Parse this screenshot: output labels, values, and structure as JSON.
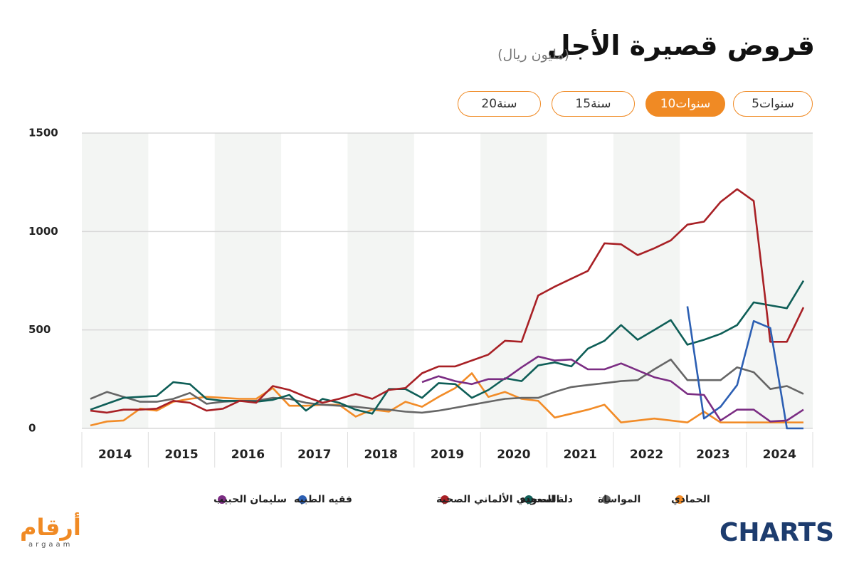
{
  "header": {
    "title": "قروض قصيرة الأجل",
    "subtitle": "(مليون ريال)"
  },
  "buttons": [
    "5سنوات",
    "10سنوات",
    "15سنة",
    "20سنة"
  ],
  "active_button": 1,
  "chart_data": {
    "type": "line",
    "categories": [
      "2014",
      null,
      null,
      null,
      "2015",
      null,
      null,
      null,
      "2016",
      null,
      null,
      null,
      "2017",
      null,
      null,
      null,
      "2018",
      null,
      null,
      null,
      "2019",
      null,
      null,
      null,
      "2020",
      null,
      null,
      null,
      "2021",
      null,
      null,
      null,
      "2022",
      null,
      null,
      null,
      "2023",
      null,
      null,
      null,
      "2024",
      null,
      null,
      null
    ],
    "ylim": [
      0,
      1500
    ],
    "yticks": [
      0,
      500,
      1000,
      1500
    ],
    "grid": true,
    "series": [
      {
        "name": "الحمادي",
        "color": "#f28c28",
        "values": [
          15,
          35,
          40,
          100,
          90,
          135,
          150,
          160,
          155,
          150,
          150,
          205,
          115,
          115,
          120,
          120,
          60,
          95,
          85,
          135,
          110,
          160,
          205,
          280,
          160,
          185,
          150,
          140,
          55,
          75,
          95,
          120,
          30,
          40,
          50,
          40,
          30,
          85,
          30,
          30,
          30,
          30,
          30,
          30
        ]
      },
      {
        "name": "المواساة",
        "color": "#666666",
        "values": [
          150,
          185,
          160,
          135,
          135,
          150,
          180,
          125,
          135,
          140,
          140,
          155,
          150,
          130,
          120,
          115,
          110,
          100,
          95,
          85,
          80,
          90,
          105,
          120,
          135,
          150,
          155,
          155,
          185,
          210,
          220,
          230,
          240,
          245,
          300,
          350,
          245,
          245,
          245,
          310,
          285,
          200,
          215,
          175
        ]
      },
      {
        "name": "دلة الصحية",
        "color": "#0e5e57",
        "values": [
          95,
          125,
          155,
          160,
          165,
          235,
          225,
          150,
          140,
          140,
          135,
          145,
          170,
          90,
          150,
          130,
          95,
          75,
          200,
          200,
          155,
          230,
          225,
          155,
          195,
          255,
          240,
          320,
          335,
          315,
          405,
          445,
          525,
          450,
          500,
          550,
          425,
          450,
          480,
          525,
          640,
          625,
          610,
          750
        ]
      },
      {
        "name": "السعودي الألماني الصحية",
        "color": "#a82025",
        "values": [
          90,
          80,
          95,
          95,
          100,
          140,
          130,
          90,
          100,
          140,
          130,
          215,
          195,
          160,
          130,
          150,
          175,
          150,
          195,
          205,
          280,
          315,
          315,
          345,
          375,
          445,
          440,
          675,
          720,
          760,
          800,
          940,
          935,
          880,
          915,
          955,
          1035,
          1050,
          1150,
          1215,
          1155,
          440,
          440,
          615
        ]
      },
      {
        "name": "فقيه الطبيه",
        "color": "#2c5fb3",
        "values": [
          null,
          null,
          null,
          null,
          null,
          null,
          null,
          null,
          null,
          null,
          null,
          null,
          null,
          null,
          null,
          null,
          null,
          null,
          null,
          null,
          null,
          null,
          null,
          null,
          null,
          null,
          null,
          null,
          null,
          null,
          null,
          null,
          null,
          null,
          null,
          null,
          620,
          50,
          110,
          220,
          545,
          510,
          0,
          0
        ]
      },
      {
        "name": "سليمان الحبيب",
        "color": "#7b2d83",
        "values": [
          null,
          null,
          null,
          null,
          null,
          null,
          null,
          null,
          null,
          null,
          null,
          null,
          null,
          null,
          null,
          null,
          null,
          null,
          null,
          null,
          235,
          265,
          240,
          225,
          250,
          250,
          310,
          365,
          345,
          350,
          300,
          300,
          330,
          295,
          260,
          240,
          175,
          170,
          40,
          95,
          95,
          35,
          40,
          95
        ]
      }
    ]
  },
  "logos": {
    "left": "أرقام",
    "left_sub": "argaam",
    "right": "CHARTS"
  }
}
